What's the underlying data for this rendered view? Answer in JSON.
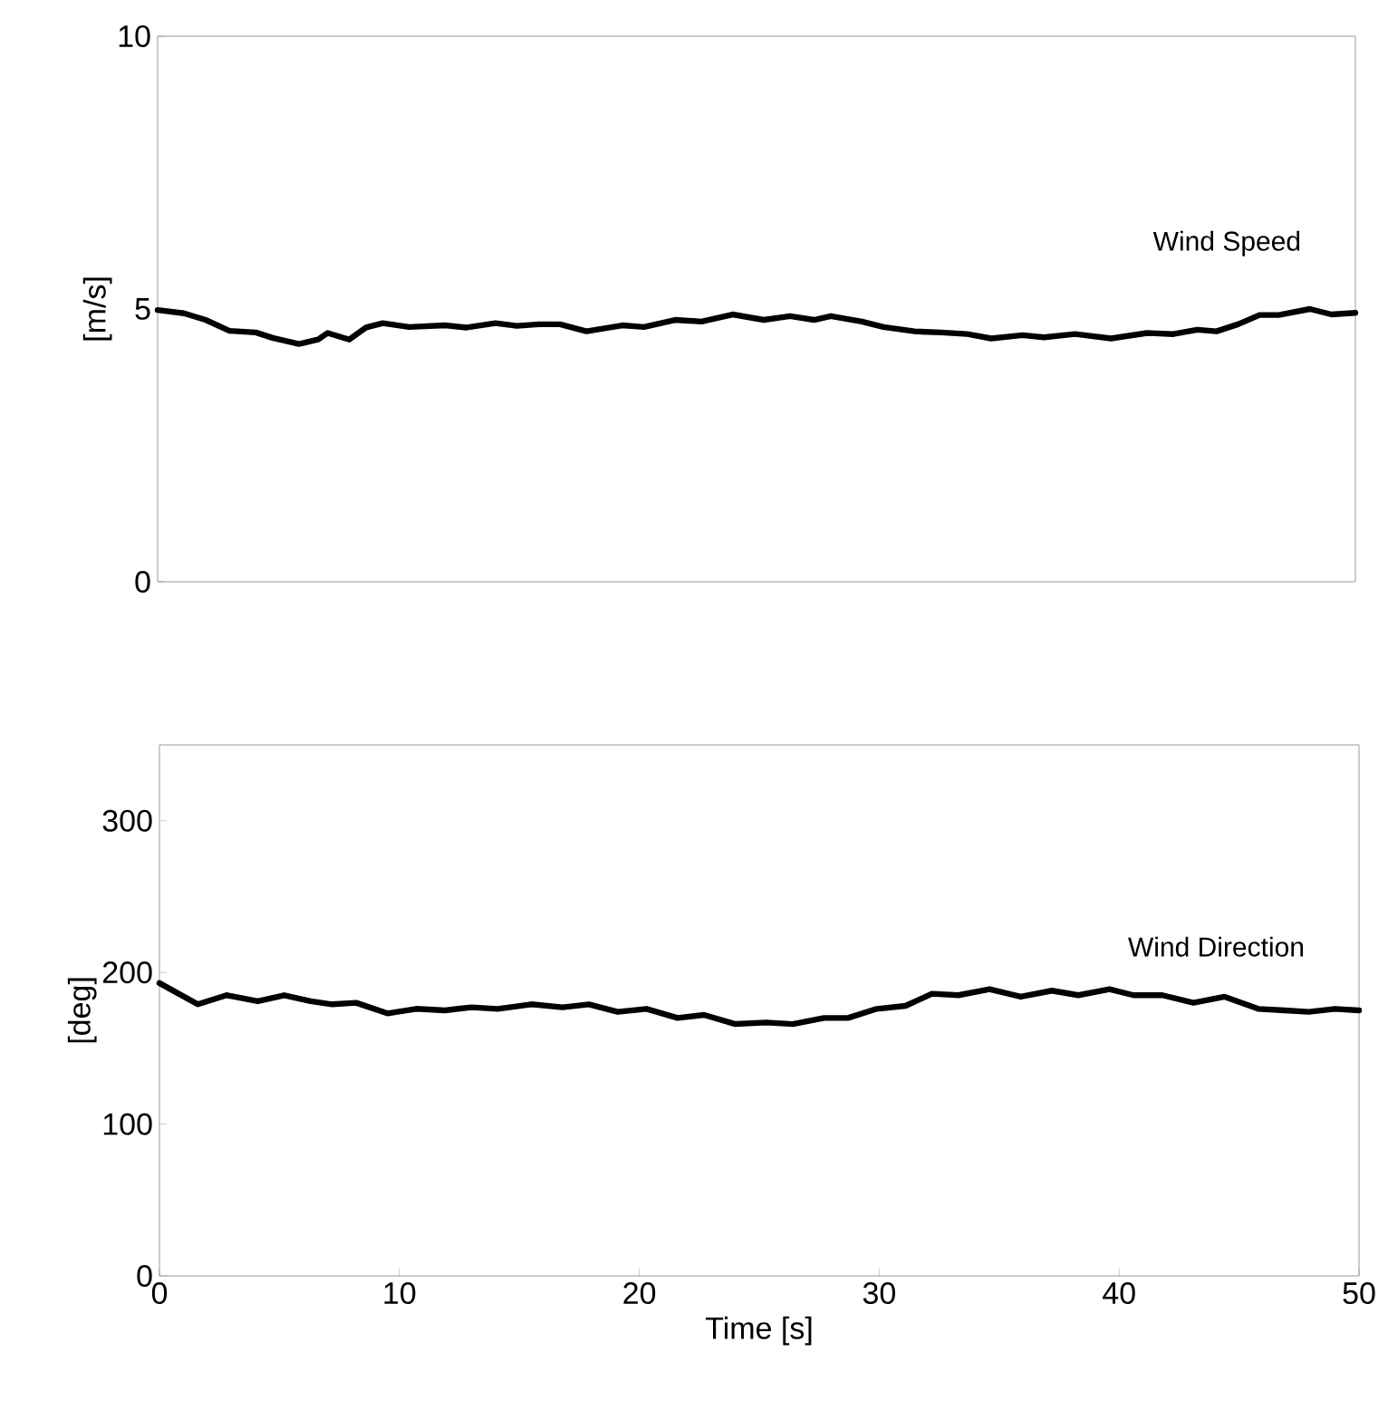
{
  "chart_data": [
    {
      "type": "line",
      "ylabel": "[m/s]",
      "annotations": [
        "Wind Speed"
      ],
      "color": "#000000",
      "xlim": [
        0,
        50
      ],
      "ylim": [
        0,
        10
      ],
      "yticks": [
        0,
        5,
        10
      ],
      "tick_labels": "y",
      "x": [
        0,
        1.1,
        2.0,
        3.0,
        4.1,
        4.8,
        5.9,
        6.7,
        7.1,
        8.0,
        8.7,
        9.4,
        10.5,
        12.0,
        12.9,
        14.1,
        15.0,
        15.9,
        16.8,
        17.9,
        19.4,
        20.3,
        21.6,
        22.7,
        24.0,
        25.3,
        26.4,
        27.4,
        28.1,
        29.4,
        30.3,
        31.6,
        32.7,
        33.8,
        34.8,
        36.1,
        37.0,
        38.3,
        39.8,
        41.3,
        42.4,
        43.4,
        44.2,
        45.1,
        46.0,
        46.8,
        48.1,
        49.0,
        50
      ],
      "values": [
        4.98,
        4.92,
        4.8,
        4.6,
        4.57,
        4.47,
        4.36,
        4.44,
        4.56,
        4.44,
        4.66,
        4.74,
        4.67,
        4.7,
        4.66,
        4.74,
        4.69,
        4.72,
        4.72,
        4.59,
        4.7,
        4.67,
        4.8,
        4.77,
        4.9,
        4.8,
        4.87,
        4.8,
        4.87,
        4.77,
        4.67,
        4.59,
        4.57,
        4.54,
        4.46,
        4.52,
        4.48,
        4.54,
        4.46,
        4.56,
        4.54,
        4.62,
        4.59,
        4.72,
        4.89,
        4.89,
        5.0,
        4.9,
        4.93
      ]
    },
    {
      "type": "line",
      "xlabel": "Time [s]",
      "ylabel": "[deg]",
      "annotations": [
        "Wind Direction"
      ],
      "color": "#000000",
      "xlim": [
        0,
        50
      ],
      "ylim": [
        0,
        350
      ],
      "xticks": [
        0,
        10,
        20,
        30,
        40,
        50
      ],
      "yticks": [
        0,
        100,
        200,
        300
      ],
      "x": [
        0,
        0.8,
        1.6,
        2.8,
        4.1,
        5.2,
        6.3,
        7.2,
        8.2,
        9.5,
        10.7,
        11.9,
        13.0,
        14.1,
        15.5,
        16.8,
        17.9,
        19.1,
        20.3,
        21.6,
        22.7,
        24.0,
        25.3,
        26.4,
        27.7,
        28.7,
        29.9,
        31.1,
        32.2,
        33.3,
        34.6,
        35.9,
        37.2,
        38.3,
        39.6,
        40.6,
        41.8,
        43.1,
        44.4,
        45.8,
        46.9,
        47.9,
        49.0,
        50
      ],
      "values": [
        193,
        186,
        179,
        185,
        181,
        185,
        181,
        179,
        180,
        173,
        176,
        175,
        177,
        176,
        179,
        177,
        179,
        174,
        176,
        170,
        172,
        166,
        167,
        166,
        170,
        170,
        176,
        178,
        186,
        185,
        189,
        184,
        188,
        185,
        189,
        185,
        185,
        180,
        184,
        176,
        175,
        174,
        176,
        175
      ]
    }
  ]
}
